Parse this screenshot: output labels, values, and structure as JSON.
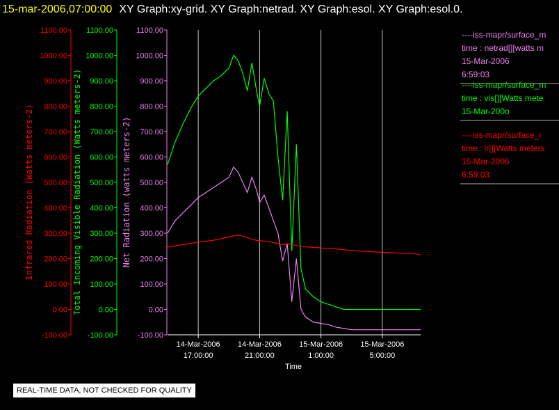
{
  "title": {
    "datetime": "15-mar-2006,07:00:00",
    "graphs": "XY Graph:xy-grid.  XY Graph:netrad.  XY Graph:esol.  XY Graph:esol.0."
  },
  "disclaimer": "REAL-TIME DATA, NOT CHECKED FOR QUALITY",
  "colors": {
    "ir": "#ff0000",
    "vis": "#00ff00",
    "net": "#ee82ee",
    "grid": "#c8c8c8",
    "axis": "#ffffff"
  },
  "chart_data": {
    "type": "line",
    "xlabel": "Time",
    "x_ticks": [
      {
        "date": "14-Mar-2006",
        "time": "17:00:00"
      },
      {
        "date": "14-Mar-2006",
        "time": "21:00:00"
      },
      {
        "date": "15-Mar-2006",
        "time": "1:00:00"
      },
      {
        "date": "15-Mar-2006",
        "time": "5:00:00"
      }
    ],
    "x_tick_hours": [
      17,
      21,
      25,
      29
    ],
    "xlim_hours": [
      15.0,
      31.5
    ],
    "grid": true,
    "y_tick_labels": [
      "1100.00",
      "1000.00",
      "900.00",
      "800.00",
      "700.00",
      "600.00",
      "500.00",
      "400.00",
      "300.00",
      "200.00",
      "100.00",
      "0.00",
      "-100.00"
    ],
    "axes": [
      {
        "id": "ir",
        "label": "Infrared Radiation (Watts meters-2)",
        "ylim": [
          -100,
          1100
        ]
      },
      {
        "id": "vis",
        "label": "Total Incoming Visible Radiation (Watts meters-2)",
        "ylim": [
          -100,
          1100
        ]
      },
      {
        "id": "net",
        "label": "Net Radiation (watts meters-2)",
        "ylim": [
          -100,
          1100
        ]
      }
    ],
    "series": [
      {
        "id": "vis",
        "x": [
          15.0,
          15.5,
          16.0,
          16.5,
          17.0,
          17.5,
          18.0,
          18.5,
          19.0,
          19.3,
          19.6,
          19.9,
          20.2,
          20.5,
          20.8,
          21.0,
          21.3,
          21.6,
          21.9,
          22.2,
          22.5,
          22.8,
          23.1,
          23.4,
          23.7,
          24.0,
          24.5,
          25.0,
          25.5,
          26.0,
          26.5,
          27.0,
          28.0,
          29.0,
          30.0,
          31.0,
          31.5
        ],
        "values": [
          570,
          660,
          730,
          790,
          840,
          870,
          900,
          920,
          950,
          1000,
          980,
          930,
          860,
          970,
          860,
          800,
          910,
          850,
          820,
          600,
          430,
          780,
          230,
          650,
          160,
          80,
          50,
          30,
          20,
          10,
          0,
          0,
          0,
          0,
          0,
          0,
          0
        ]
      },
      {
        "id": "net",
        "x": [
          15.0,
          15.5,
          16.0,
          16.5,
          17.0,
          17.5,
          18.0,
          18.5,
          19.0,
          19.3,
          19.6,
          19.9,
          20.2,
          20.5,
          20.8,
          21.0,
          21.3,
          21.6,
          21.9,
          22.2,
          22.5,
          22.8,
          23.1,
          23.4,
          23.7,
          24.0,
          24.5,
          25.0,
          25.5,
          26.0,
          26.5,
          27.0,
          28.0,
          29.0,
          30.0,
          31.0,
          31.5
        ],
        "values": [
          300,
          350,
          380,
          410,
          440,
          460,
          480,
          500,
          520,
          560,
          540,
          500,
          460,
          520,
          470,
          420,
          450,
          400,
          350,
          300,
          190,
          260,
          30,
          200,
          0,
          -30,
          -50,
          -55,
          -60,
          -70,
          -75,
          -80,
          -80,
          -80,
          -80,
          -80,
          -80
        ]
      },
      {
        "id": "ir",
        "x": [
          15.0,
          16.0,
          17.0,
          18.0,
          18.5,
          19.0,
          19.5,
          20.0,
          20.5,
          21.0,
          21.5,
          22.0,
          22.5,
          23.0,
          23.5,
          24.0,
          24.5,
          25.0,
          25.5,
          26.0,
          26.5,
          27.0,
          28.0,
          29.0,
          30.0,
          31.0,
          31.5
        ],
        "values": [
          245,
          255,
          265,
          272,
          278,
          285,
          292,
          288,
          275,
          270,
          268,
          262,
          255,
          258,
          250,
          246,
          244,
          242,
          240,
          238,
          235,
          232,
          228,
          225,
          222,
          220,
          215
        ]
      }
    ]
  },
  "legend": [
    {
      "id": "net",
      "lines": [
        "----iss-mapr/surface_m",
        "time : netrad[][watts m",
        "15-Mar-2006",
        "6:59:03"
      ]
    },
    {
      "id": "vis",
      "lines": [
        "----iss-mapr/surface_m",
        "time : vis[][Watts mete",
        "15-Mar-200o"
      ]
    },
    {
      "id": "ir",
      "lines": [
        "----iss-mapr/surface_r",
        "time : ir[][Watts meters",
        "15-Mar-2006",
        "6:59:03"
      ]
    }
  ]
}
